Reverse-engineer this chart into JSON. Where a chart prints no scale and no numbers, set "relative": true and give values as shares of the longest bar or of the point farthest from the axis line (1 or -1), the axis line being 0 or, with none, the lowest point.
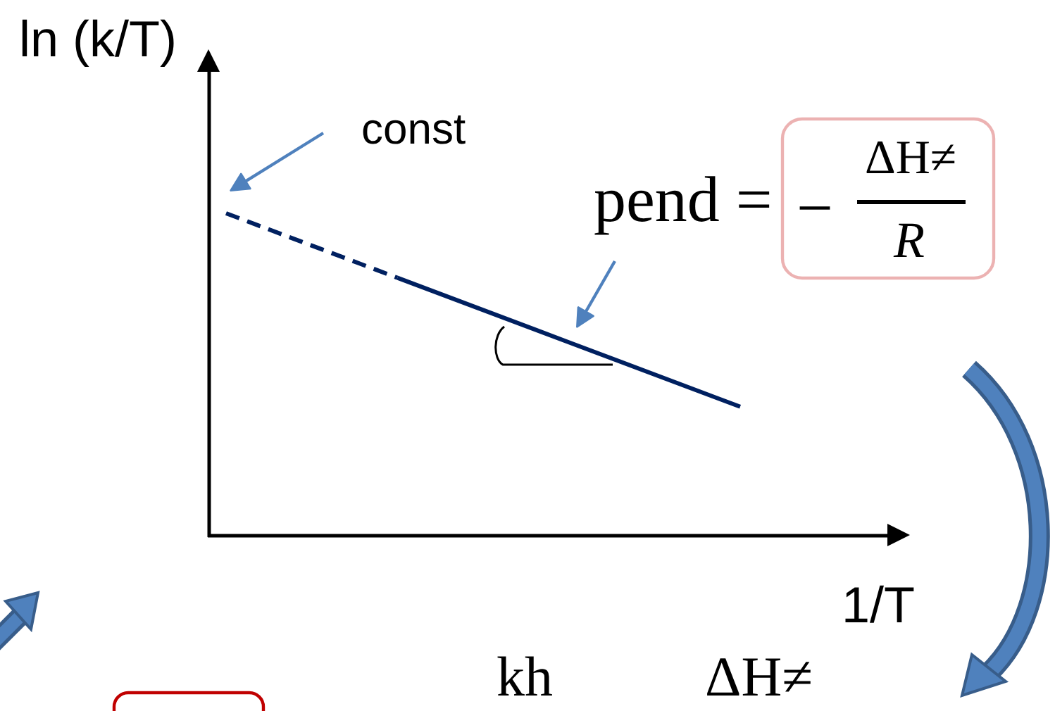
{
  "chart_data": {
    "type": "line",
    "relative": true,
    "categories": [
      null,
      null,
      null,
      null
    ],
    "xlabel": "1/T",
    "ylabel": "ln (k/T)",
    "series": [
      {
        "color": "#002060",
        "line_style": "dashed",
        "values": [
          1,
          0.8,
          null,
          null
        ]
      },
      {
        "color": "#002060",
        "line_style": "solid",
        "values": [
          null,
          0.8,
          0.6,
          0.4
        ]
      }
    ],
    "annotations": [
      "const",
      "pend =",
      "−",
      "ΔH≠",
      "R",
      "kh",
      "ΔH≠"
    ]
  }
}
